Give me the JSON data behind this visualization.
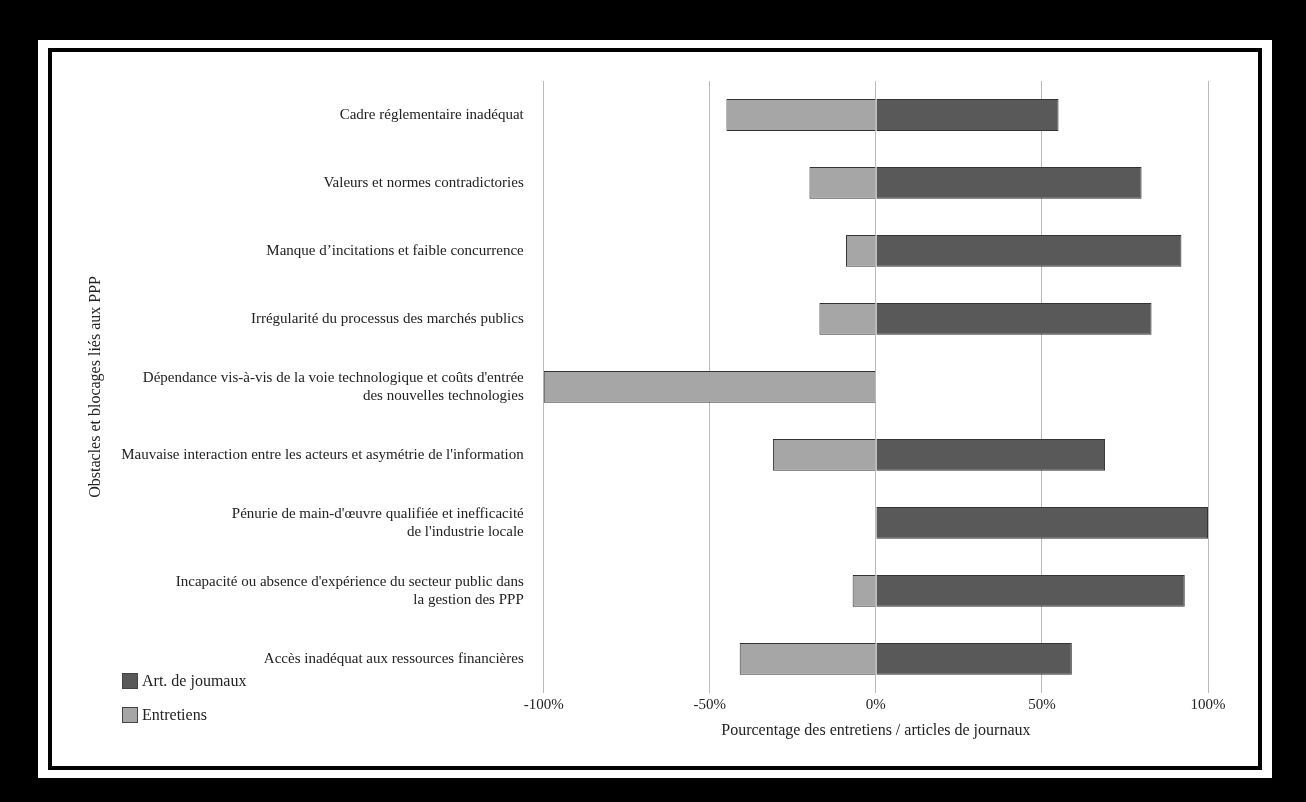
{
  "chart_data": {
    "type": "bar",
    "orientation": "horizontal",
    "stacked": true,
    "ylabel": "Obstacles et blocages liés aux PPP",
    "xlabel": "Pourcentage des entretiens / articles de journaux",
    "categories": [
      "Cadre réglementaire inadéquat",
      "Valeurs et normes contradictories",
      "Manque d’incitations et faible concurrence",
      "Irrégularité du processus des marchés publics",
      "Dépendance vis-à-vis de la voie technologique et coûts d'entrée\ndes nouvelles technologies",
      "Mauvaise interaction entre les acteurs et asymétrie de l'information",
      "Pénurie de main-d'œuvre qualifiée et inefficacité\nde l'industrie locale",
      "Incapacité ou absence d'expérience du secteur public dans\nla gestion des PPP",
      "Accès inadéquat aux ressources financières"
    ],
    "series": [
      {
        "name": "Art. de joumaux",
        "color": "#595959",
        "values": [
          55,
          80,
          92,
          83,
          0,
          69,
          100,
          93,
          59
        ]
      },
      {
        "name": "Entretiens",
        "color": "#a6a6a6",
        "values": [
          -45,
          -20,
          -9,
          -17,
          -100,
          -31,
          0,
          -7,
          -41
        ]
      }
    ],
    "xlim": [
      -100,
      100
    ],
    "xticks": [
      {
        "value": -100,
        "label": "-100%"
      },
      {
        "value": -50,
        "label": "-50%"
      },
      {
        "value": 0,
        "label": "0%"
      },
      {
        "value": 50,
        "label": "50%"
      },
      {
        "value": 100,
        "label": "100%"
      }
    ],
    "grid": "x",
    "legend": "bottom left"
  }
}
